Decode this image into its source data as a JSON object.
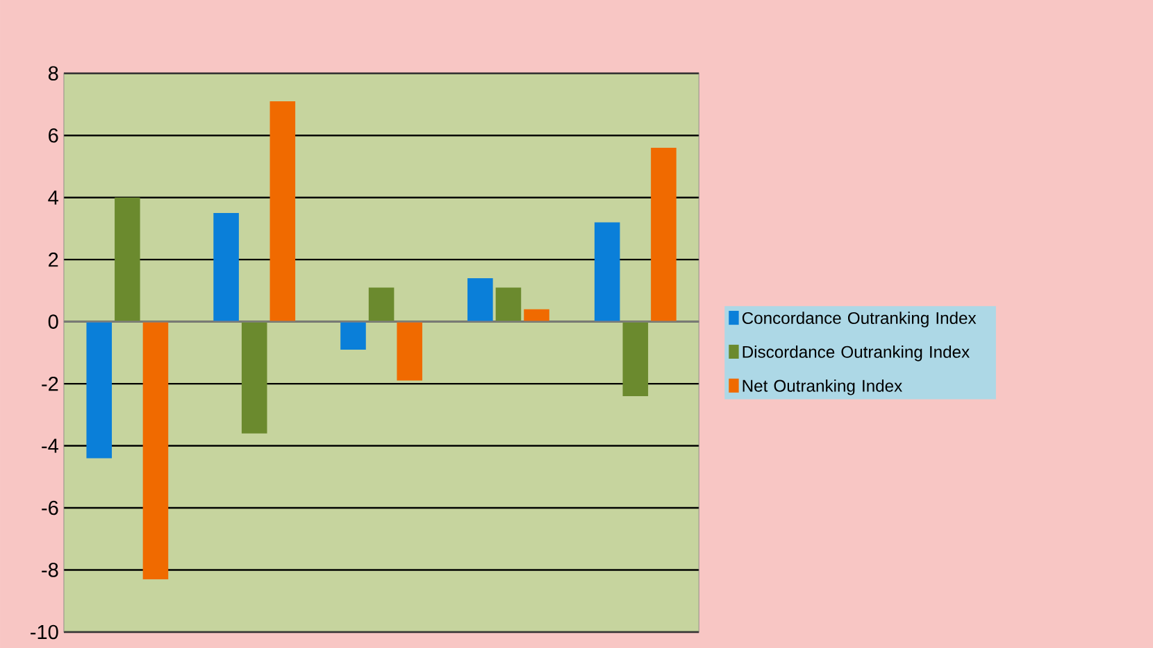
{
  "chart_data": {
    "type": "bar",
    "categories": [
      null,
      null,
      null,
      null,
      null
    ],
    "series": [
      {
        "name": "Concordance Outranking Index",
        "color": "#0a7fd9",
        "values": [
          -4.4,
          3.5,
          -0.9,
          1.4,
          3.2
        ]
      },
      {
        "name": "Discordance Outranking Index",
        "color": "#6b8a2e",
        "values": [
          4.0,
          -3.6,
          1.1,
          1.1,
          -2.4
        ]
      },
      {
        "name": "Net Outranking Index",
        "color": "#f06a00",
        "values": [
          -8.3,
          7.1,
          -1.9,
          0.4,
          5.6
        ]
      }
    ],
    "ylim": [
      -10,
      8
    ],
    "yticks": [
      -10,
      -8,
      -6,
      -4,
      -2,
      0,
      2,
      4,
      6,
      8
    ],
    "grid": "y",
    "legend": "right"
  }
}
